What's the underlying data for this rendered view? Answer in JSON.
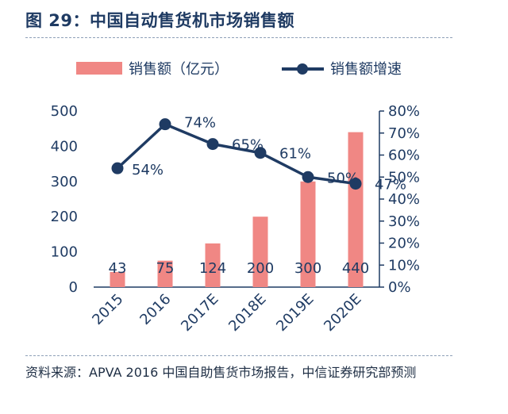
{
  "figure_title": "图 29：中国自动售货机市场销售额",
  "source_note": "资料来源：APVA 2016 中国自助售货市场报告，中信证券研究部预测",
  "colors": {
    "bar": "#f08784",
    "line": "#1f3b63",
    "text": "#1f3b63"
  },
  "chart_data": {
    "type": "bar+line",
    "categories": [
      "2015",
      "2016",
      "2017E",
      "2018E",
      "2019E",
      "2020E"
    ],
    "series": [
      {
        "name": "销售额（亿元）",
        "type": "bar",
        "axis": "left",
        "values": [
          43,
          75,
          124,
          200,
          300,
          440
        ],
        "labels": [
          "43",
          "75",
          "124",
          "200",
          "300",
          "440"
        ]
      },
      {
        "name": "销售额增速",
        "type": "line",
        "axis": "right",
        "values": [
          0.54,
          0.74,
          0.65,
          0.61,
          0.5,
          0.47
        ],
        "labels": [
          "54%",
          "74%",
          "65%",
          "61%",
          "50%",
          "47%"
        ]
      }
    ],
    "y_left": {
      "range": [
        0,
        500
      ],
      "ticks": [
        "0",
        "100",
        "200",
        "300",
        "400",
        "500"
      ]
    },
    "y_right": {
      "range": [
        0,
        0.8
      ],
      "ticks": [
        "0%",
        "10%",
        "20%",
        "30%",
        "40%",
        "50%",
        "60%",
        "70%",
        "80%"
      ]
    },
    "legend_position": "top",
    "grid": false
  }
}
